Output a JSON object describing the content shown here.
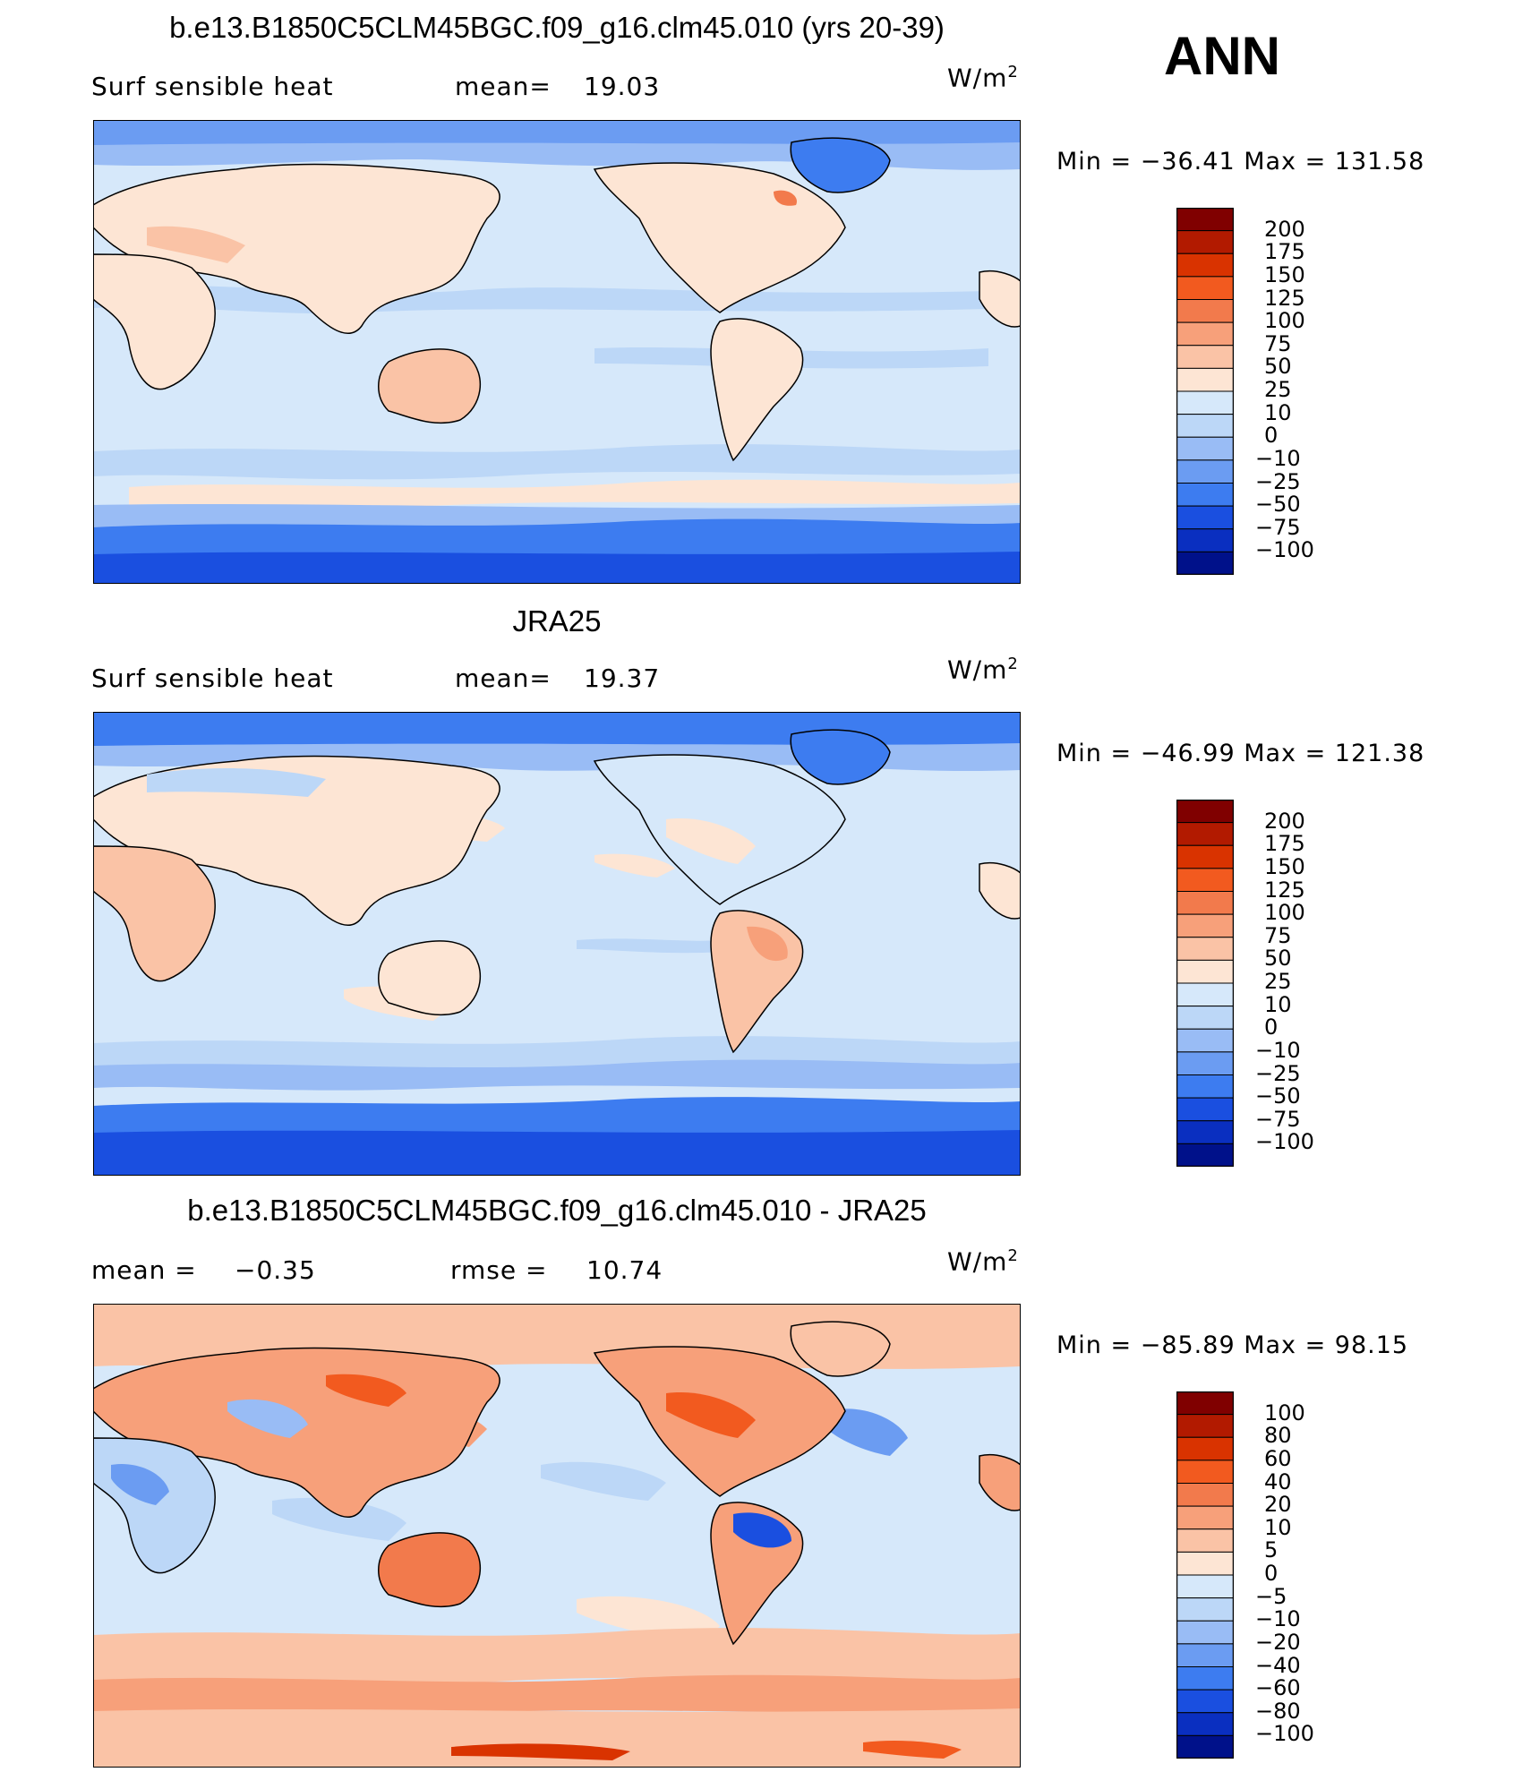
{
  "season": "ANN",
  "panels": [
    {
      "title": "b.e13.B1850C5CLM45BGC.f09_g16.clm45.010 (yrs 20-39)",
      "left_label": "Surf  sensible  heat",
      "stat_label": "mean=",
      "stat_value": "19.03",
      "stat2_label": "",
      "stat2_value": "",
      "units_base": "W/m",
      "units_exp": "2",
      "min_label": "Min  =  −36.41  Max  =  131.58",
      "colorbar": {
        "levels": [
          "200",
          "175",
          "150",
          "125",
          "100",
          "75",
          "50",
          "25",
          "10",
          "0",
          "−10",
          "−25",
          "−50",
          "−75",
          "−100"
        ],
        "colors": [
          "#800000",
          "#b21a00",
          "#d93300",
          "#f25a1f",
          "#f27a4c",
          "#f7a07a",
          "#fac3a6",
          "#fde5d4",
          "#d6e8fa",
          "#bcd7f7",
          "#99bcf5",
          "#6b9cf2",
          "#3d7cf0",
          "#1a4fe0",
          "#0a2fc0",
          "#00118a"
        ]
      }
    },
    {
      "title": "JRA25",
      "left_label": "Surf  sensible  heat",
      "stat_label": "mean=",
      "stat_value": "19.37",
      "stat2_label": "",
      "stat2_value": "",
      "units_base": "W/m",
      "units_exp": "2",
      "min_label": "Min  =  −46.99  Max  =  121.38",
      "colorbar": {
        "levels": [
          "200",
          "175",
          "150",
          "125",
          "100",
          "75",
          "50",
          "25",
          "10",
          "0",
          "−10",
          "−25",
          "−50",
          "−75",
          "−100"
        ],
        "colors": [
          "#800000",
          "#b21a00",
          "#d93300",
          "#f25a1f",
          "#f27a4c",
          "#f7a07a",
          "#fac3a6",
          "#fde5d4",
          "#d6e8fa",
          "#bcd7f7",
          "#99bcf5",
          "#6b9cf2",
          "#3d7cf0",
          "#1a4fe0",
          "#0a2fc0",
          "#00118a"
        ]
      }
    },
    {
      "title": "b.e13.B1850C5CLM45BGC.f09_g16.clm45.010 - JRA25",
      "left_label": "mean  =",
      "stat_label": "",
      "stat_value": "−0.35",
      "stat2_label": "rmse  =",
      "stat2_value": "10.74",
      "units_base": "W/m",
      "units_exp": "2",
      "min_label": "Min  =  −85.89  Max  =   98.15",
      "colorbar": {
        "levels": [
          "100",
          "80",
          "60",
          "40",
          "20",
          "10",
          "5",
          "0",
          "−5",
          "−10",
          "−20",
          "−40",
          "−60",
          "−80",
          "−100"
        ],
        "colors": [
          "#800000",
          "#b21a00",
          "#d93300",
          "#f25a1f",
          "#f27a4c",
          "#f7a07a",
          "#fac3a6",
          "#fde5d4",
          "#d6e8fa",
          "#bcd7f7",
          "#99bcf5",
          "#6b9cf2",
          "#3d7cf0",
          "#1a4fe0",
          "#0a2fc0",
          "#00118a"
        ]
      }
    }
  ]
}
